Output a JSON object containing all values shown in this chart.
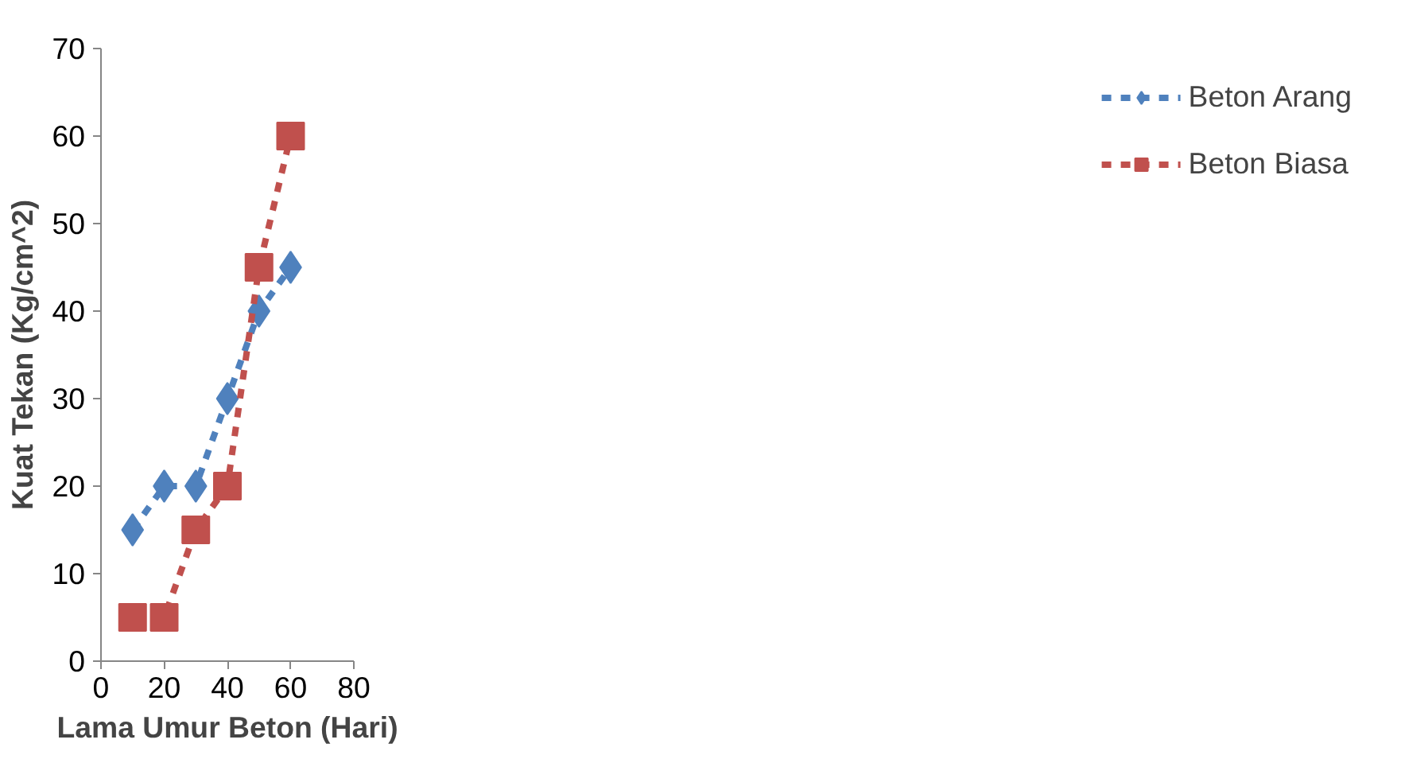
{
  "chart_data": {
    "type": "line",
    "xlabel": "Lama Umur Beton (Hari)",
    "ylabel": "Kuat Tekan (Kg/cm^2)",
    "x": [
      10,
      20,
      30,
      40,
      50,
      60
    ],
    "series": [
      {
        "name": "Beton Arang",
        "color": "#4f81bd",
        "marker": "diamond",
        "values": [
          15,
          20,
          20,
          30,
          40,
          45
        ]
      },
      {
        "name": "Beton Biasa",
        "color": "#c0504d",
        "marker": "square",
        "values": [
          5,
          5,
          15,
          20,
          45,
          60
        ]
      }
    ],
    "xlim": [
      0,
      80
    ],
    "xticks": [
      0,
      20,
      40,
      60,
      80
    ],
    "ylim": [
      0,
      70
    ],
    "yticks": [
      0,
      10,
      20,
      30,
      40,
      50,
      60,
      70
    ],
    "grid": false,
    "legend": "right",
    "line_style": "dashed"
  }
}
